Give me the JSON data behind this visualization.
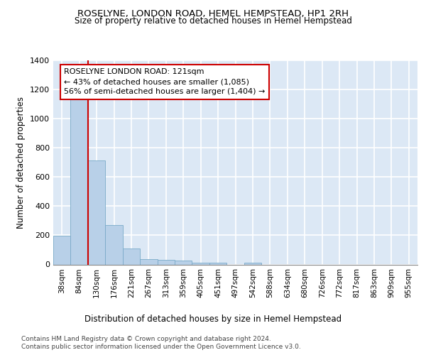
{
  "title1": "ROSELYNE, LONDON ROAD, HEMEL HEMPSTEAD, HP1 2RH",
  "title2": "Size of property relative to detached houses in Hemel Hempstead",
  "xlabel": "Distribution of detached houses by size in Hemel Hempstead",
  "ylabel": "Number of detached properties",
  "bin_labels": [
    "38sqm",
    "84sqm",
    "130sqm",
    "176sqm",
    "221sqm",
    "267sqm",
    "313sqm",
    "359sqm",
    "405sqm",
    "451sqm",
    "497sqm",
    "542sqm",
    "588sqm",
    "634sqm",
    "680sqm",
    "726sqm",
    "772sqm",
    "817sqm",
    "863sqm",
    "909sqm",
    "955sqm"
  ],
  "bar_heights": [
    195,
    1145,
    715,
    270,
    110,
    35,
    30,
    25,
    12,
    12,
    0,
    12,
    0,
    0,
    0,
    0,
    0,
    0,
    0,
    0,
    0
  ],
  "bar_color": "#b8d0e8",
  "bar_edge_color": "#7aaac8",
  "background_color": "#dce8f5",
  "grid_color": "#ffffff",
  "property_line_color": "#cc0000",
  "annotation_text": "ROSELYNE LONDON ROAD: 121sqm\n← 43% of detached houses are smaller (1,085)\n56% of semi-detached houses are larger (1,404) →",
  "annotation_box_color": "#ffffff",
  "annotation_box_edge": "#cc0000",
  "ylim": [
    0,
    1400
  ],
  "yticks": [
    0,
    200,
    400,
    600,
    800,
    1000,
    1200,
    1400
  ],
  "footer1": "Contains HM Land Registry data © Crown copyright and database right 2024.",
  "footer2": "Contains public sector information licensed under the Open Government Licence v3.0."
}
